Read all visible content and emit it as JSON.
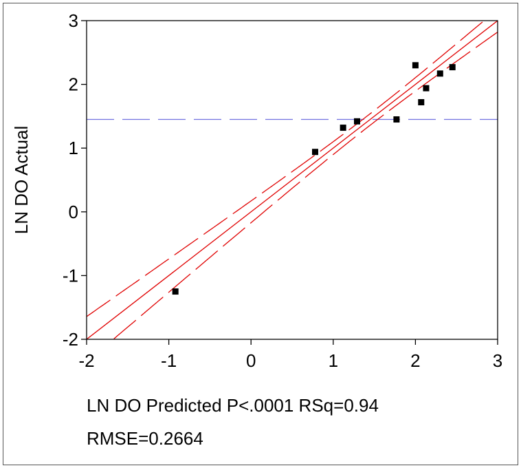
{
  "chart_data": {
    "type": "scatter",
    "xlabel": "LN DO Predicted P<.0001 RSq=0.94",
    "ylabel": "LN DO Actual",
    "footer": "RMSE=0.2664",
    "xlim": [
      -2,
      3
    ],
    "ylim": [
      -2,
      3
    ],
    "xticks": [
      "-2",
      "-1",
      "0",
      "1",
      "2",
      "3"
    ],
    "yticks": [
      "-2",
      "-1",
      "0",
      "1",
      "2",
      "3"
    ],
    "points": [
      {
        "x": -0.92,
        "y": -1.25
      },
      {
        "x": 0.78,
        "y": 0.94
      },
      {
        "x": 1.12,
        "y": 1.32
      },
      {
        "x": 1.29,
        "y": 1.42
      },
      {
        "x": 1.77,
        "y": 1.45
      },
      {
        "x": 2.0,
        "y": 2.3
      },
      {
        "x": 2.07,
        "y": 1.72
      },
      {
        "x": 2.13,
        "y": 1.94
      },
      {
        "x": 2.3,
        "y": 2.17
      },
      {
        "x": 2.45,
        "y": 2.27
      }
    ],
    "mean_line_y": 1.45,
    "fit_line": {
      "slope": 1,
      "intercept": 0
    },
    "confidence_band": {
      "center_x": 1.45,
      "se_at_center": 0.09,
      "spread": 0.1
    },
    "colors": {
      "points": "#000000",
      "fit": "#e00000",
      "mean": "#7070e0",
      "axis": "#000000"
    },
    "grid": false
  }
}
